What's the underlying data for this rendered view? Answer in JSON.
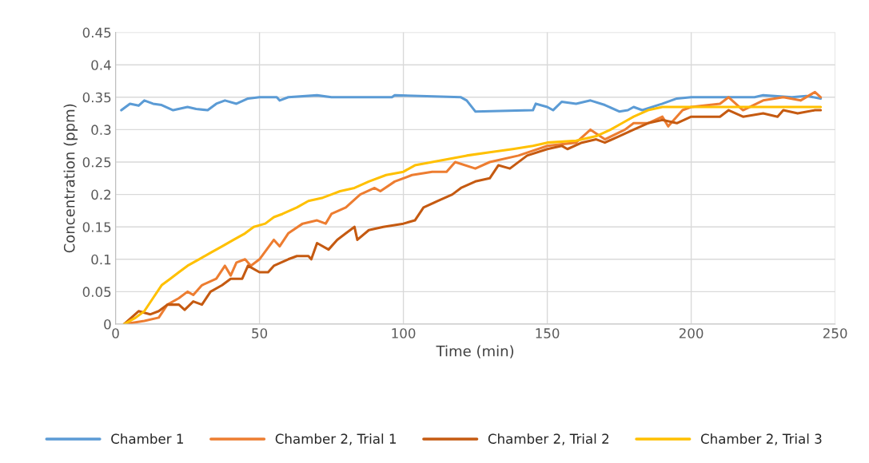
{
  "chart_data": {
    "type": "line",
    "xlabel": "Time (min)",
    "ylabel": "Concentration (ppm)",
    "xlim": [
      0,
      250
    ],
    "ylim": [
      0,
      0.45
    ],
    "xticks": [
      0,
      50,
      100,
      150,
      200,
      250
    ],
    "yticks": [
      0,
      0.05,
      0.1,
      0.15,
      0.2,
      0.25,
      0.3,
      0.35,
      0.4,
      0.45
    ],
    "grid": true,
    "legend": "bottom",
    "line_style": "solid",
    "marker": "none",
    "series": [
      {
        "name": "Chamber 1",
        "color": "#5b9bd5",
        "x": [
          2,
          5,
          8,
          10,
          13,
          16,
          20,
          25,
          28,
          32,
          35,
          38,
          42,
          46,
          50,
          56,
          57,
          60,
          70,
          75,
          96,
          97,
          120,
          122,
          125,
          145,
          146,
          150,
          152,
          155,
          160,
          165,
          170,
          175,
          178,
          180,
          183,
          190,
          195,
          200,
          222,
          225,
          235,
          240,
          245
        ],
        "values": [
          0.33,
          0.34,
          0.337,
          0.345,
          0.34,
          0.338,
          0.33,
          0.335,
          0.332,
          0.33,
          0.34,
          0.345,
          0.34,
          0.348,
          0.35,
          0.35,
          0.345,
          0.35,
          0.353,
          0.35,
          0.35,
          0.353,
          0.35,
          0.345,
          0.328,
          0.33,
          0.34,
          0.335,
          0.33,
          0.343,
          0.34,
          0.345,
          0.338,
          0.328,
          0.33,
          0.335,
          0.33,
          0.34,
          0.348,
          0.35,
          0.35,
          0.353,
          0.35,
          0.352,
          0.348
        ]
      },
      {
        "name": "Chamber 2, Trial 1",
        "color": "#ed7d31",
        "x": [
          3,
          10,
          15,
          18,
          22,
          25,
          27,
          30,
          35,
          38,
          40,
          42,
          45,
          47,
          50,
          55,
          57,
          60,
          65,
          70,
          73,
          75,
          80,
          85,
          90,
          92,
          97,
          103,
          110,
          115,
          118,
          125,
          130,
          140,
          150,
          160,
          165,
          170,
          177,
          180,
          185,
          190,
          192,
          197,
          200,
          210,
          213,
          218,
          225,
          232,
          238,
          243,
          245
        ],
        "values": [
          0,
          0.005,
          0.01,
          0.03,
          0.04,
          0.05,
          0.045,
          0.06,
          0.07,
          0.09,
          0.075,
          0.095,
          0.1,
          0.09,
          0.1,
          0.13,
          0.12,
          0.14,
          0.155,
          0.16,
          0.155,
          0.17,
          0.18,
          0.2,
          0.21,
          0.205,
          0.22,
          0.23,
          0.235,
          0.235,
          0.25,
          0.24,
          0.25,
          0.26,
          0.275,
          0.28,
          0.3,
          0.285,
          0.3,
          0.31,
          0.31,
          0.32,
          0.305,
          0.33,
          0.335,
          0.34,
          0.35,
          0.33,
          0.345,
          0.35,
          0.345,
          0.358,
          0.35
        ]
      },
      {
        "name": "Chamber 2, Trial 2",
        "color": "#c55a11",
        "x": [
          3,
          8,
          12,
          15,
          18,
          22,
          24,
          27,
          30,
          33,
          37,
          40,
          44,
          46,
          50,
          53,
          55,
          60,
          63,
          67,
          68,
          70,
          74,
          77,
          80,
          83,
          84,
          88,
          93,
          100,
          104,
          107,
          112,
          117,
          120,
          125,
          130,
          133,
          137,
          143,
          150,
          155,
          157,
          162,
          167,
          170,
          175,
          180,
          185,
          190,
          195,
          200,
          210,
          213,
          218,
          225,
          230,
          232,
          237,
          243,
          245
        ],
        "values": [
          0,
          0.02,
          0.015,
          0.02,
          0.03,
          0.03,
          0.022,
          0.035,
          0.03,
          0.05,
          0.06,
          0.07,
          0.07,
          0.09,
          0.08,
          0.08,
          0.09,
          0.1,
          0.105,
          0.105,
          0.1,
          0.125,
          0.115,
          0.13,
          0.14,
          0.15,
          0.13,
          0.145,
          0.15,
          0.155,
          0.16,
          0.18,
          0.19,
          0.2,
          0.21,
          0.22,
          0.225,
          0.245,
          0.24,
          0.26,
          0.27,
          0.275,
          0.27,
          0.28,
          0.285,
          0.28,
          0.29,
          0.3,
          0.31,
          0.315,
          0.31,
          0.32,
          0.32,
          0.33,
          0.32,
          0.325,
          0.32,
          0.33,
          0.325,
          0.33,
          0.33
        ]
      },
      {
        "name": "Chamber 2, Trial 3",
        "color": "#ffc000",
        "x": [
          3,
          7,
          10,
          13,
          16,
          19,
          22,
          25,
          29,
          33,
          37,
          41,
          45,
          48,
          52,
          55,
          58,
          63,
          67,
          72,
          75,
          78,
          83,
          88,
          94,
          100,
          104,
          110,
          116,
          122,
          130,
          138,
          145,
          150,
          160,
          167,
          172,
          176,
          180,
          185,
          190,
          200,
          245
        ],
        "values": [
          0,
          0.01,
          0.02,
          0.04,
          0.06,
          0.07,
          0.08,
          0.09,
          0.1,
          0.11,
          0.12,
          0.13,
          0.14,
          0.15,
          0.155,
          0.165,
          0.17,
          0.18,
          0.19,
          0.195,
          0.2,
          0.205,
          0.21,
          0.22,
          0.23,
          0.235,
          0.245,
          0.25,
          0.255,
          0.26,
          0.265,
          0.27,
          0.275,
          0.28,
          0.283,
          0.29,
          0.3,
          0.31,
          0.32,
          0.33,
          0.335,
          0.335,
          0.335
        ]
      }
    ]
  }
}
